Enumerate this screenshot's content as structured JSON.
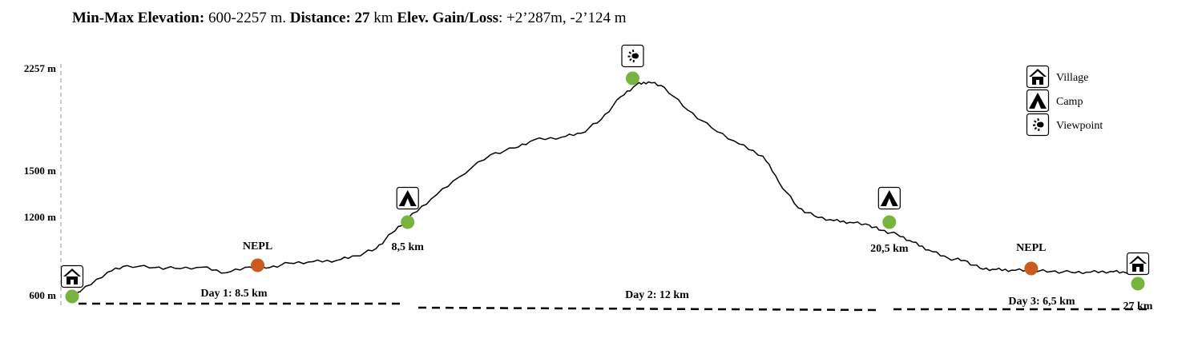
{
  "header": {
    "minmax_label": "Min-Max Elevation:",
    "minmax_value": " 600-2257 m. ",
    "distance_label": "Distance:",
    "distance_value": "27",
    "distance_unit": " km  ",
    "gain_label": "Elev. Gain/Loss",
    "gain_value": ": +2’287m, -2’124 m"
  },
  "chart_data": {
    "type": "line",
    "y_ticks": [
      {
        "value": 2257,
        "label": "2257 m"
      },
      {
        "value": 1500,
        "label": "1500 m"
      },
      {
        "value": 1200,
        "label": "1200 m"
      },
      {
        "value": 600,
        "label": "600 m"
      }
    ],
    "xlim": [
      0,
      27
    ],
    "ylim": [
      600,
      2257
    ],
    "profile": {
      "x": [
        0,
        0.2,
        0.9,
        1.4,
        2.1,
        2.6,
        3.3,
        3.9,
        4.5,
        5.0,
        5.5,
        6.1,
        6.7,
        7.2,
        7.7,
        8.1,
        8.5,
        9.1,
        9.8,
        10.6,
        11.2,
        11.7,
        12.4,
        12.9,
        13.4,
        13.9,
        14.3,
        14.6,
        15.0,
        15.6,
        16.2,
        16.9,
        17.5,
        17.9,
        18.4,
        18.8,
        19.3,
        19.7,
        20.2,
        20.5,
        20.9,
        21.3,
        21.7,
        22.2,
        22.6,
        23.0,
        23.4,
        23.8,
        24.3,
        24.8,
        25.3,
        25.8,
        26.3,
        26.7,
        27.0
      ],
      "y": [
        620,
        630,
        780,
        830,
        815,
        810,
        818,
        775,
        820,
        815,
        850,
        860,
        870,
        905,
        960,
        1080,
        1190,
        1320,
        1460,
        1620,
        1670,
        1730,
        1750,
        1780,
        1880,
        2050,
        2140,
        2160,
        2120,
        1950,
        1820,
        1700,
        1610,
        1430,
        1260,
        1210,
        1175,
        1162,
        1140,
        1100,
        1070,
        1010,
        950,
        885,
        870,
        810,
        800,
        795,
        792,
        785,
        780,
        780,
        785,
        775,
        780
      ]
    },
    "waypoints": [
      {
        "km": 0,
        "elev": 600,
        "marker": "green",
        "icon": "village",
        "label": ""
      },
      {
        "km": 4.7,
        "elev": 820,
        "marker": "orange",
        "icon": "",
        "label": "NEPL"
      },
      {
        "km": 8.5,
        "elev": 1190,
        "marker": "green",
        "icon": "camp",
        "label": "8,5 km"
      },
      {
        "km": 14.2,
        "elev": 2205,
        "marker": "green",
        "icon": "viewpoint",
        "label": ""
      },
      {
        "km": 20.5,
        "elev": 1190,
        "marker": "green",
        "icon": "camp",
        "label": "20,5 km"
      },
      {
        "km": 24.5,
        "elev": 800,
        "marker": "orange",
        "icon": "",
        "label": "NEPL"
      },
      {
        "km": 27,
        "elev": 640,
        "marker": "green",
        "icon": "village",
        "label": "27 km"
      }
    ],
    "days": [
      {
        "label": "Day 1: 8.5 km",
        "start_km": 0,
        "end_km": 8.5
      },
      {
        "label": "Day 2: 12 km",
        "start_km": 8.5,
        "end_km": 20.5
      },
      {
        "label": "Day 3: 6,5 km",
        "start_km": 20.5,
        "end_km": 27
      }
    ],
    "legend": [
      {
        "icon": "village",
        "label": "Village"
      },
      {
        "icon": "camp",
        "label": "Camp"
      },
      {
        "icon": "viewpoint",
        "label": "Viewpoint"
      }
    ],
    "legend_position": "top-right",
    "colors": {
      "green": "#78b33f",
      "orange": "#cc5a1e",
      "line": "#000000"
    }
  }
}
